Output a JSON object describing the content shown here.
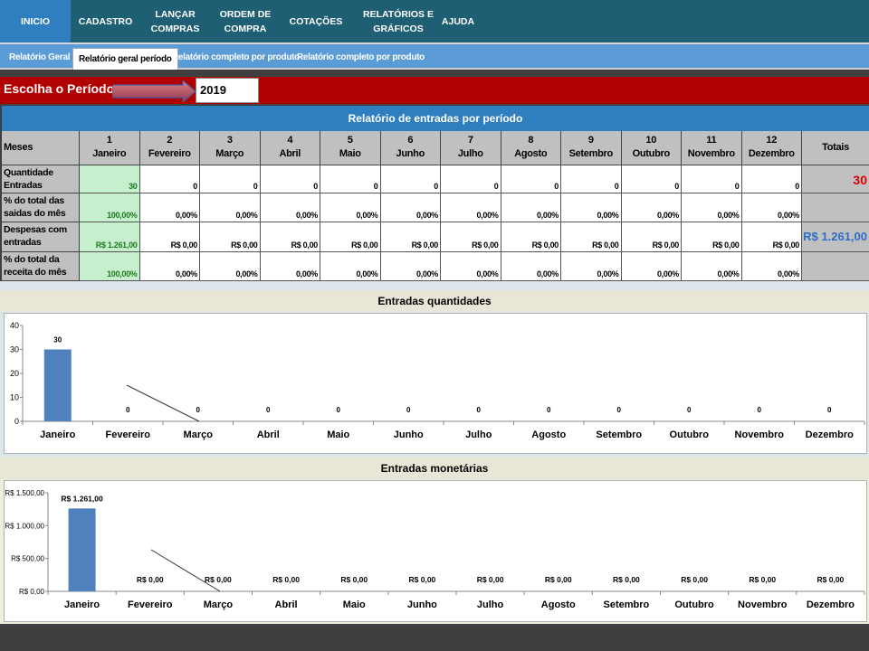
{
  "nav": {
    "items": [
      {
        "label": "INICIO",
        "active": true
      },
      {
        "label": "CADASTRO"
      },
      {
        "label": "LANÇAR\nCOMPRAS"
      },
      {
        "label": "ORDEM DE\nCOMPRA"
      },
      {
        "label": "COTAÇÕES"
      },
      {
        "label": "RELATÓRIOS E\nGRÁFICOS"
      },
      {
        "label": "AJUDA"
      }
    ]
  },
  "subnav": {
    "tabs": [
      {
        "label": "Relatório Geral"
      },
      {
        "label": "Relatório geral período",
        "active": true
      },
      {
        "label": "Relatório completo por produto"
      },
      {
        "label": "Relatório completo por produto"
      }
    ]
  },
  "period": {
    "label": "Escolha o Período",
    "value": "2019"
  },
  "report": {
    "title": "Relatório de entradas por período",
    "meses_label": "Meses",
    "totais_label": "Totais",
    "months": [
      {
        "num": "1",
        "name": "Janeiro"
      },
      {
        "num": "2",
        "name": "Fevereiro"
      },
      {
        "num": "3",
        "name": "Março"
      },
      {
        "num": "4",
        "name": "Abril"
      },
      {
        "num": "5",
        "name": "Maio"
      },
      {
        "num": "6",
        "name": "Junho"
      },
      {
        "num": "7",
        "name": "Julho"
      },
      {
        "num": "8",
        "name": "Agosto"
      },
      {
        "num": "9",
        "name": "Setembro"
      },
      {
        "num": "10",
        "name": "Outubro"
      },
      {
        "num": "11",
        "name": "Novembro"
      },
      {
        "num": "12",
        "name": "Dezembro"
      }
    ],
    "rows": [
      {
        "label": "Quantidade Entradas",
        "values": [
          "30",
          "0",
          "0",
          "0",
          "0",
          "0",
          "0",
          "0",
          "0",
          "0",
          "0",
          "0"
        ],
        "total": "30"
      },
      {
        "label": "% do total das saidas do mês",
        "values": [
          "100,00%",
          "0,00%",
          "0,00%",
          "0,00%",
          "0,00%",
          "0,00%",
          "0,00%",
          "0,00%",
          "0,00%",
          "0,00%",
          "0,00%",
          "0,00%"
        ],
        "total": ""
      },
      {
        "label": "Despesas com entradas",
        "values": [
          "R$ 1.261,00",
          "R$ 0,00",
          "R$ 0,00",
          "R$ 0,00",
          "R$ 0,00",
          "R$ 0,00",
          "R$ 0,00",
          "R$ 0,00",
          "R$ 0,00",
          "R$ 0,00",
          "R$ 0,00",
          "R$ 0,00"
        ],
        "total": "R$ 1.261,00"
      },
      {
        "label": "% do total da receita do mês",
        "values": [
          "100,00%",
          "0,00%",
          "0,00%",
          "0,00%",
          "0,00%",
          "0,00%",
          "0,00%",
          "0,00%",
          "0,00%",
          "0,00%",
          "0,00%",
          "0,00%"
        ],
        "total": ""
      }
    ],
    "colors": {
      "total_qty": "#e00000",
      "total_money": "#2f6ec8"
    }
  },
  "chart_data": [
    {
      "type": "bar",
      "title": "Entradas quantidades",
      "categories": [
        "Janeiro",
        "Fevereiro",
        "Março",
        "Abril",
        "Maio",
        "Junho",
        "Julho",
        "Agosto",
        "Setembro",
        "Outubro",
        "Novembro",
        "Dezembro"
      ],
      "values": [
        30,
        0,
        0,
        0,
        0,
        0,
        0,
        0,
        0,
        0,
        0,
        0
      ],
      "data_labels": [
        "30",
        "0",
        "0",
        "0",
        "0",
        "0",
        "0",
        "0",
        "0",
        "0",
        "0",
        "0"
      ],
      "yticks": [
        "0",
        "10",
        "20",
        "30",
        "40"
      ],
      "ylim": [
        0,
        40
      ],
      "grid": false,
      "bar_color": "#4f81bd"
    },
    {
      "type": "bar",
      "title": "Entradas monetárias",
      "categories": [
        "Janeiro",
        "Fevereiro",
        "Março",
        "Abril",
        "Maio",
        "Junho",
        "Julho",
        "Agosto",
        "Setembro",
        "Outubro",
        "Novembro",
        "Dezembro"
      ],
      "values": [
        1261,
        0,
        0,
        0,
        0,
        0,
        0,
        0,
        0,
        0,
        0,
        0
      ],
      "data_labels": [
        "R$ 1.261,00",
        "R$ 0,00",
        "R$ 0,00",
        "R$ 0,00",
        "R$ 0,00",
        "R$ 0,00",
        "R$ 0,00",
        "R$ 0,00",
        "R$ 0,00",
        "R$ 0,00",
        "R$ 0,00",
        "R$ 0,00"
      ],
      "yticks": [
        "R$ 0,00",
        "R$ 500,00",
        "R$ 1.000,00",
        "R$ 1.500,00"
      ],
      "ylim": [
        0,
        1500
      ],
      "grid": false,
      "bar_color": "#4f81bd"
    }
  ]
}
